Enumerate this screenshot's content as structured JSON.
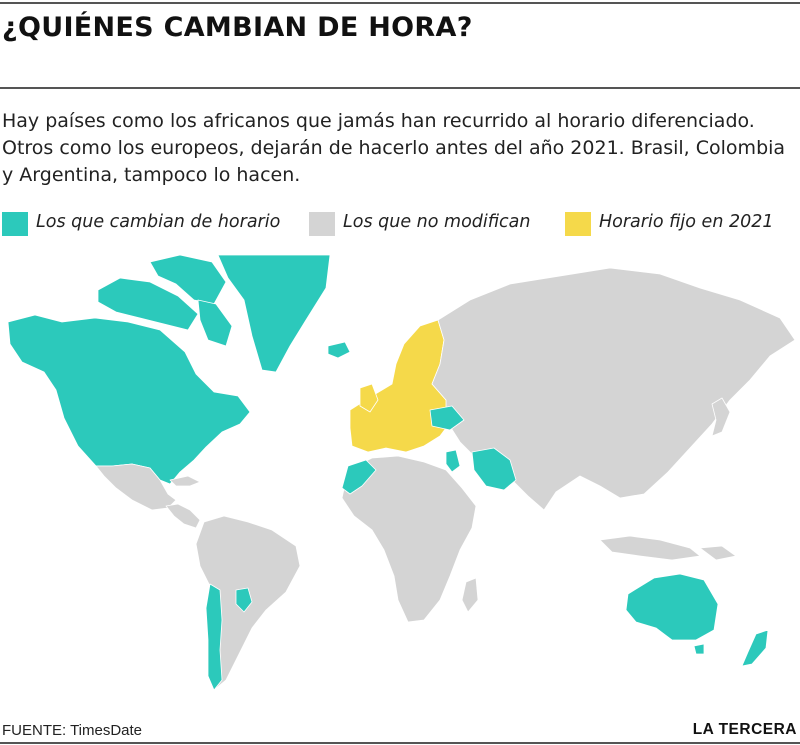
{
  "title": "¿QUIÉNES CAMBIAN DE HORA?",
  "intro": "Hay países como los africanos que jamás han recurrido al horario diferenciado. Otros como los europeos, dejarán de hacerlo antes del año 2021. Brasil, Colombia y Argentina, tampoco lo hacen.",
  "legend": [
    {
      "label": "Los que cambian de horario",
      "color": "#2cc9bb"
    },
    {
      "label": "Los que no modifican",
      "color": "#d4d4d4"
    },
    {
      "label": "Horario fijo en 2021",
      "color": "#f5d94a"
    }
  ],
  "colors": {
    "dst": "#2cc9bb",
    "none": "#d4d4d4",
    "fixed2021": "#f5d94a",
    "border": "#ffffff"
  },
  "footer": {
    "source": "FUENTE: TimesDate",
    "brand": "LA TERCERA"
  }
}
